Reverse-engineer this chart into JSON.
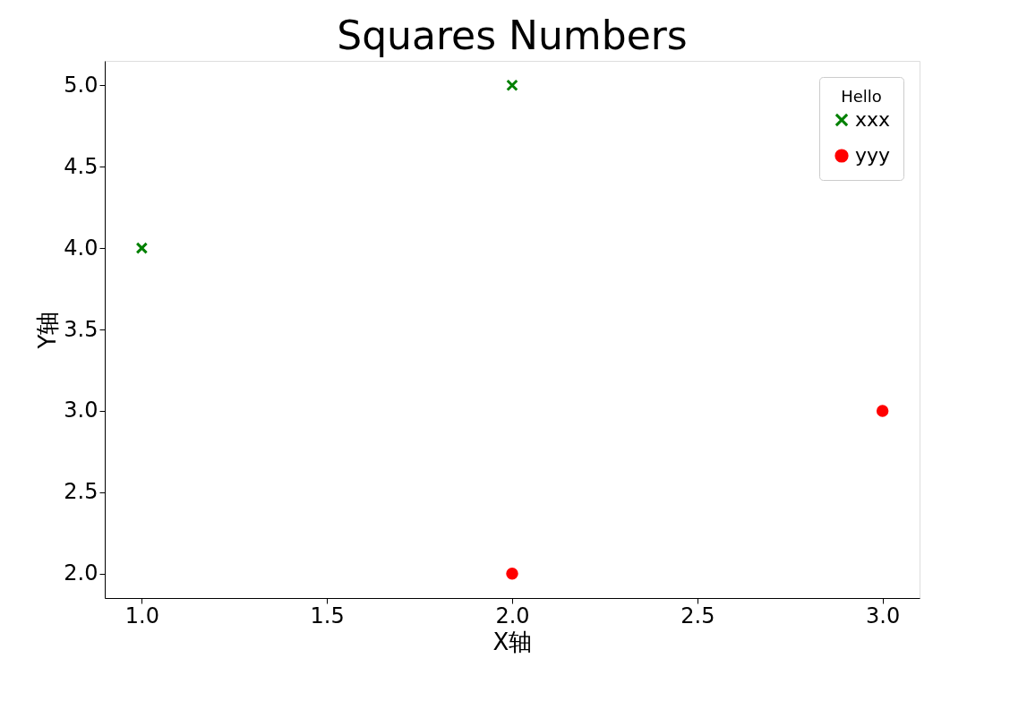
{
  "chart_data": {
    "type": "scatter",
    "title": "Squares Numbers",
    "xlabel": "X轴",
    "ylabel": "Y轴",
    "legend_title": "Hello",
    "legend": "top right",
    "grid": false,
    "xlim": [
      0.9,
      3.1
    ],
    "ylim": [
      1.85,
      5.15
    ],
    "xticks": [
      {
        "value": 1,
        "label": "1.0"
      },
      {
        "value": 1.5,
        "label": "1.5"
      },
      {
        "value": 2,
        "label": "2.0"
      },
      {
        "value": 2.5,
        "label": "2.5"
      },
      {
        "value": 3,
        "label": "3.0"
      }
    ],
    "yticks": [
      {
        "value": 2,
        "label": "2.0"
      },
      {
        "value": 2.5,
        "label": "2.5"
      },
      {
        "value": 3,
        "label": "3.0"
      },
      {
        "value": 3.5,
        "label": "3.5"
      },
      {
        "value": 4,
        "label": "4.0"
      },
      {
        "value": 4.5,
        "label": "4.5"
      },
      {
        "value": 5,
        "label": "5.0"
      }
    ],
    "series": [
      {
        "name": "xxx",
        "color": "#008000",
        "marker": "cross",
        "x": [
          1,
          2
        ],
        "values": [
          4,
          5
        ]
      },
      {
        "name": "yyy",
        "color": "#ff0000",
        "marker": "circle",
        "x": [
          2,
          3
        ],
        "values": [
          2,
          3
        ]
      }
    ]
  }
}
